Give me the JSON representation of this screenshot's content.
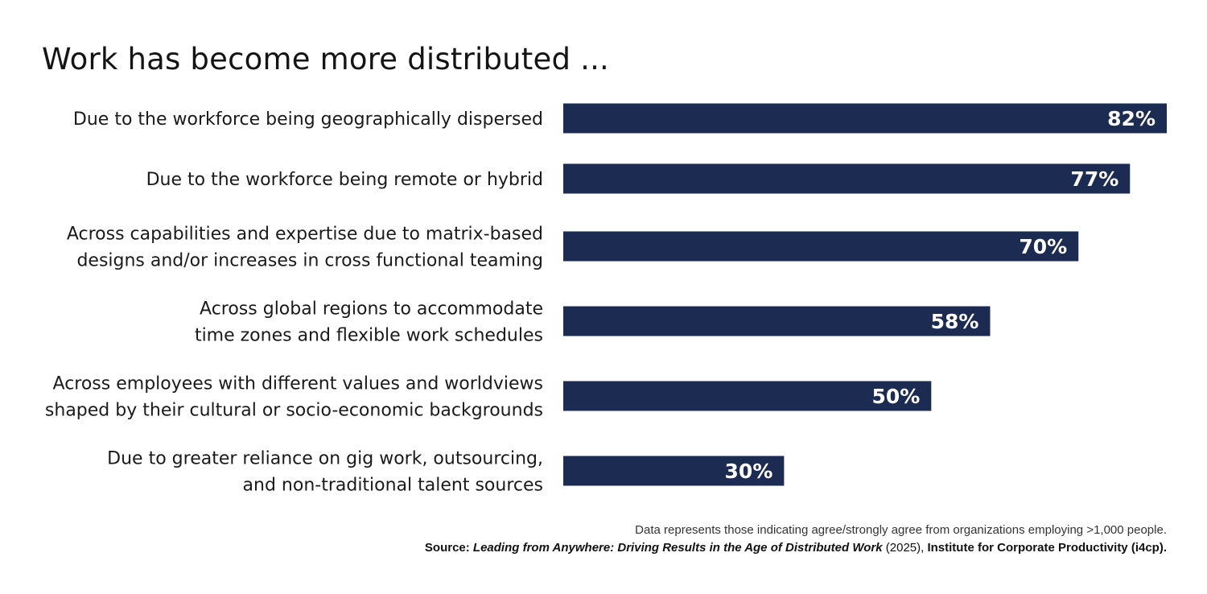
{
  "title": "Work has become more distributed ...",
  "chart_data": {
    "type": "bar",
    "orientation": "horizontal",
    "categories": [
      [
        "Due to the workforce being geographically dispersed"
      ],
      [
        "Due to the workforce being remote or hybrid"
      ],
      [
        "Across capabilities and expertise due to matrix-based",
        "designs and/or increases in cross functional teaming"
      ],
      [
        "Across global regions to accommodate",
        "time zones and flexible work schedules"
      ],
      [
        "Across employees with different values and worldviews",
        "shaped by their cultural or socio-economic backgrounds"
      ],
      [
        "Due to greater reliance on gig work, outsourcing,",
        "and non-traditional talent sources"
      ]
    ],
    "values": [
      82,
      77,
      70,
      58,
      50,
      30
    ],
    "value_labels": [
      "82%",
      "77%",
      "70%",
      "58%",
      "50%",
      "30%"
    ],
    "bar_color": "#1c2b52",
    "grid": false
  },
  "footnote": "Data represents those indicating agree/strongly agree from organizations employing >1,000 people.",
  "source": {
    "prefix": "Source: ",
    "publication": "Leading from Anywhere: Driving Results in the Age of Distributed Work",
    "year": " (2025), ",
    "organization": "Institute for Corporate Productivity (i4cp)."
  }
}
